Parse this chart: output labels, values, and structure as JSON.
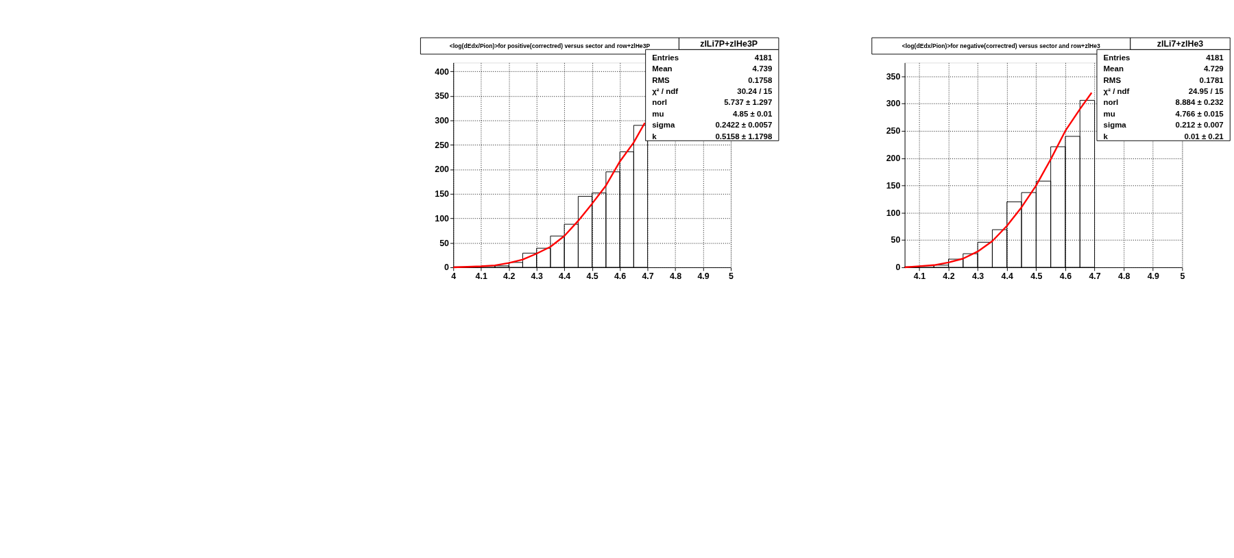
{
  "chart_data": [
    {
      "type": "histogram",
      "title": "<log(dEdx/Pion)>for positive(correctred) versus sector and row+zlHe3P",
      "bins": [
        4.0,
        4.05,
        4.1,
        4.15,
        4.2,
        4.25,
        4.3,
        4.35,
        4.4,
        4.45,
        4.5,
        4.55,
        4.6,
        4.65,
        4.7,
        4.75,
        4.8,
        4.85,
        4.9,
        4.95,
        5.0
      ],
      "values": [
        1,
        2,
        3,
        3,
        10,
        29,
        39,
        64,
        88,
        145,
        152,
        195,
        236,
        290,
        null,
        null,
        null,
        null,
        null,
        null
      ],
      "color": "#000000",
      "series": [
        {
          "type": "line",
          "color": "#ff0000",
          "x": [
            4.0,
            4.05,
            4.1,
            4.15,
            4.2,
            4.25,
            4.3,
            4.35,
            4.4,
            4.45,
            4.5,
            4.55,
            4.6,
            4.65,
            4.69
          ],
          "values": [
            0,
            1,
            2,
            4,
            9,
            16,
            28,
            42,
            64,
            95,
            130,
            167,
            216,
            255,
            295
          ]
        }
      ],
      "xlim": [
        4.0,
        5.0
      ],
      "xticks": [
        4,
        4.1,
        4.2,
        4.3,
        4.4,
        4.5,
        4.6,
        4.7,
        4.8,
        4.9,
        5
      ],
      "ylim": [
        0,
        418
      ],
      "yticks": [
        0,
        50,
        100,
        150,
        200,
        250,
        300,
        350,
        400
      ],
      "grid": true,
      "legend": false,
      "annotations": [
        "zlLi7P+zlHe3P",
        "Entries",
        "4181",
        "Mean",
        "4.739",
        "RMS",
        "0.1758",
        "χ² / ndf",
        "30.24 / 15",
        "norl",
        "5.737 ± 1.297",
        "mu",
        "4.85 ± 0.01",
        "sigma",
        "0.2422 ± 0.0057",
        "k",
        "0.5158 ± 1.1798"
      ]
    },
    {
      "type": "histogram",
      "title": "<log(dEdx/Pion)>for negative(correctred) versus sector and row+zlHe3",
      "bins": [
        4.05,
        4.1,
        4.15,
        4.2,
        4.25,
        4.3,
        4.35,
        4.4,
        4.45,
        4.5,
        4.55,
        4.6,
        4.65,
        4.7,
        4.75,
        4.8,
        4.85,
        4.9,
        4.95,
        5.0
      ],
      "values": [
        1,
        3,
        4,
        15,
        25,
        46,
        69,
        120,
        137,
        158,
        221,
        240,
        306,
        null,
        null,
        null,
        null,
        null,
        null
      ],
      "color": "#000000",
      "series": [
        {
          "type": "line",
          "color": "#ff0000",
          "x": [
            4.05,
            4.1,
            4.15,
            4.2,
            4.25,
            4.3,
            4.35,
            4.4,
            4.45,
            4.5,
            4.55,
            4.6,
            4.65,
            4.69
          ],
          "values": [
            0,
            2,
            4,
            9,
            16,
            29,
            48,
            76,
            110,
            150,
            198,
            250,
            290,
            320
          ]
        }
      ],
      "xlim": [
        4.05,
        5.0
      ],
      "xticks": [
        4.1,
        4.2,
        4.3,
        4.4,
        4.5,
        4.6,
        4.7,
        4.8,
        4.9,
        5
      ],
      "ylim": [
        0,
        375
      ],
      "yticks": [
        0,
        50,
        100,
        150,
        200,
        250,
        300,
        350
      ],
      "grid": true,
      "legend": false,
      "annotations": [
        "zlLi7+zlHe3",
        "Entries",
        "4181",
        "Mean",
        "4.729",
        "RMS",
        "0.1781",
        "χ² / ndf",
        "24.95 / 15",
        "norl",
        "8.884 ± 0.232",
        "mu",
        "4.766 ± 0.015",
        "sigma",
        "0.212 ± 0.007",
        "k",
        "0.01 ± 0.21"
      ]
    }
  ]
}
